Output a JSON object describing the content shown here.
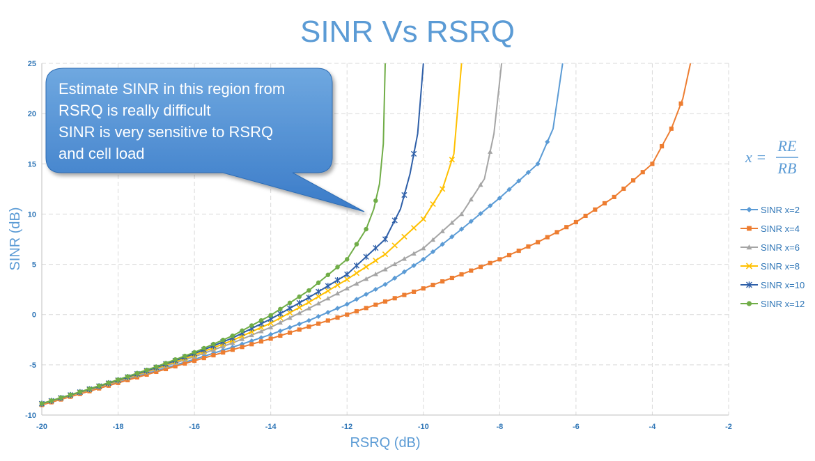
{
  "chart_data": {
    "type": "line",
    "title": "SINR Vs RSRQ",
    "xlabel": "RSRQ (dB)",
    "ylabel": "SINR (dB)",
    "xlim": [
      -20,
      -2
    ],
    "ylim": [
      -10,
      25
    ],
    "x_ticks": [
      "-20",
      "-18",
      "-16",
      "-14",
      "-12",
      "-10",
      "-8",
      "-6",
      "-4",
      "-2"
    ],
    "y_ticks": [
      "-10",
      "-5",
      "0",
      "5",
      "10",
      "15",
      "20",
      "25"
    ],
    "grid": true,
    "legend_position": "right",
    "series": [
      {
        "name": "SINR x=2",
        "color": "#5b9bd5",
        "marker": "diamond",
        "points": [
          [
            -20,
            -8.96
          ],
          [
            -19,
            -7.85
          ],
          [
            -18,
            -6.74
          ],
          [
            -17,
            -5.61
          ],
          [
            -16,
            -4.45
          ],
          [
            -15,
            -3.25
          ],
          [
            -14,
            -1.98
          ],
          [
            -13,
            -0.59
          ],
          [
            -12,
            1.03
          ],
          [
            -11,
            3.0
          ],
          [
            -10,
            5.5
          ],
          [
            -9,
            8.5
          ],
          [
            -8,
            11.6
          ],
          [
            -7,
            15.0
          ],
          [
            -6.6,
            18.5
          ],
          [
            -6.35,
            25
          ]
        ]
      },
      {
        "name": "SINR x=4",
        "color": "#ed7d31",
        "marker": "square",
        "points": [
          [
            -20,
            -9.0
          ],
          [
            -19,
            -7.9
          ],
          [
            -18,
            -6.8
          ],
          [
            -17,
            -5.7
          ],
          [
            -16,
            -4.6
          ],
          [
            -15,
            -3.5
          ],
          [
            -14,
            -2.4
          ],
          [
            -13,
            -1.2
          ],
          [
            -12,
            0.0
          ],
          [
            -11,
            1.3
          ],
          [
            -10,
            2.6
          ],
          [
            -9,
            4.0
          ],
          [
            -8,
            5.5
          ],
          [
            -7,
            7.2
          ],
          [
            -6,
            9.2
          ],
          [
            -5,
            11.7
          ],
          [
            -4,
            15.0
          ],
          [
            -3.5,
            18.5
          ],
          [
            -3.2,
            21.5
          ],
          [
            -3.0,
            25
          ]
        ]
      },
      {
        "name": "SINR x=6",
        "color": "#a5a5a5",
        "marker": "triangle",
        "points": [
          [
            -20,
            -8.91
          ],
          [
            -19,
            -7.79
          ],
          [
            -18,
            -6.64
          ],
          [
            -17,
            -5.45
          ],
          [
            -16,
            -4.19
          ],
          [
            -15,
            -2.83
          ],
          [
            -14,
            -1.27
          ],
          [
            -13,
            0.62
          ],
          [
            -12,
            2.6
          ],
          [
            -11,
            4.5
          ],
          [
            -10,
            6.6
          ],
          [
            -9,
            10.0
          ],
          [
            -8.4,
            13.5
          ],
          [
            -8.15,
            18.0
          ],
          [
            -7.95,
            25
          ]
        ]
      },
      {
        "name": "SINR x=8",
        "color": "#ffc000",
        "marker": "x",
        "points": [
          [
            -20,
            -8.89
          ],
          [
            -19,
            -7.75
          ],
          [
            -18,
            -6.58
          ],
          [
            -17,
            -5.35
          ],
          [
            -16,
            -4.03
          ],
          [
            -15,
            -2.57
          ],
          [
            -14,
            -0.85
          ],
          [
            -13,
            1.22
          ],
          [
            -12,
            3.5
          ],
          [
            -11,
            6.0
          ],
          [
            -10,
            9.5
          ],
          [
            -9.5,
            12.5
          ],
          [
            -9.2,
            16.0
          ],
          [
            -9.0,
            25
          ]
        ]
      },
      {
        "name": "SINR x=10",
        "color": "#2e5fa8",
        "marker": "star",
        "points": [
          [
            -20,
            -8.87
          ],
          [
            -19,
            -7.72
          ],
          [
            -18,
            -6.53
          ],
          [
            -17,
            -5.27
          ],
          [
            -16,
            -3.89
          ],
          [
            -15,
            -2.33
          ],
          [
            -14,
            -0.44
          ],
          [
            -13,
            1.7
          ],
          [
            -12,
            4.0
          ],
          [
            -11,
            7.5
          ],
          [
            -10.6,
            10.5
          ],
          [
            -10.35,
            14.0
          ],
          [
            -10.15,
            18.0
          ],
          [
            -10.0,
            25
          ]
        ]
      },
      {
        "name": "SINR x=12",
        "color": "#70ad47",
        "marker": "circle",
        "points": [
          [
            -20,
            -8.85
          ],
          [
            -19,
            -7.69
          ],
          [
            -18,
            -6.48
          ],
          [
            -17,
            -5.19
          ],
          [
            -16,
            -3.76
          ],
          [
            -15,
            -2.11
          ],
          [
            -14,
            -0.07
          ],
          [
            -13,
            2.4
          ],
          [
            -12,
            5.5
          ],
          [
            -11.5,
            8.5
          ],
          [
            -11.3,
            10.5
          ],
          [
            -11.15,
            13.0
          ],
          [
            -11.05,
            17.0
          ],
          [
            -11.0,
            25
          ]
        ]
      }
    ]
  },
  "callout": {
    "lines": [
      "Estimate SINR in this region from",
      "RSRQ is really difficult",
      "SINR is very sensitive to RSRQ",
      "and cell load"
    ]
  },
  "formula": {
    "lhs": "x =",
    "numerator": "RE",
    "denominator": "RB"
  }
}
